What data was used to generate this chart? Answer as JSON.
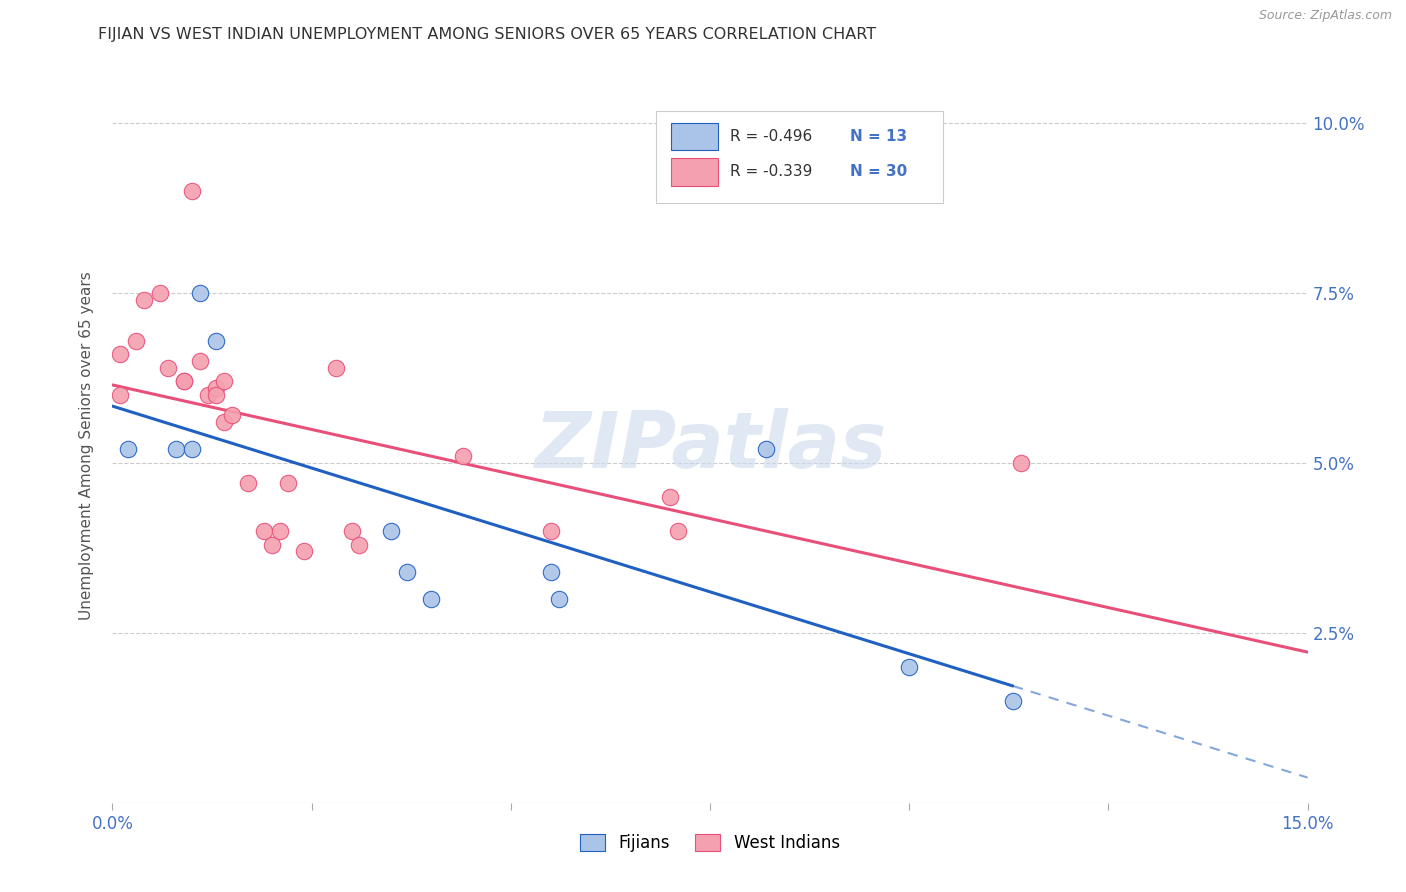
{
  "title": "FIJIAN VS WEST INDIAN UNEMPLOYMENT AMONG SENIORS OVER 65 YEARS CORRELATION CHART",
  "source": "Source: ZipAtlas.com",
  "xlabel": "",
  "ylabel": "Unemployment Among Seniors over 65 years",
  "watermark": "ZIPatlas",
  "xmin": 0.0,
  "xmax": 0.15,
  "ymin": 0.0,
  "ymax": 0.105,
  "ytick_positions": [
    0.025,
    0.05,
    0.075,
    0.1
  ],
  "ytick_labels": [
    "2.5%",
    "5.0%",
    "7.5%",
    "10.0%"
  ],
  "xtick_positions": [
    0.0,
    0.025,
    0.05,
    0.075,
    0.1,
    0.125,
    0.15
  ],
  "xtick_labels": [
    "0.0%",
    "",
    "",
    "",
    "",
    "",
    "15.0%"
  ],
  "fijian_R": "-0.496",
  "fijian_N": "13",
  "westindian_R": "-0.339",
  "westindian_N": "30",
  "fijian_color": "#aac4e8",
  "westindian_color": "#f4a0b0",
  "fijian_line_color": "#2060c0",
  "westindian_line_color": "#e8507a",
  "fijian_x": [
    0.002,
    0.008,
    0.01,
    0.011,
    0.013,
    0.035,
    0.037,
    0.04,
    0.055,
    0.056,
    0.082,
    0.1,
    0.113
  ],
  "fijian_y": [
    0.052,
    0.052,
    0.052,
    0.075,
    0.068,
    0.04,
    0.034,
    0.03,
    0.034,
    0.03,
    0.052,
    0.02,
    0.015
  ],
  "westindian_x": [
    0.001,
    0.001,
    0.003,
    0.004,
    0.006,
    0.007,
    0.009,
    0.009,
    0.01,
    0.011,
    0.012,
    0.013,
    0.013,
    0.014,
    0.014,
    0.015,
    0.017,
    0.019,
    0.02,
    0.021,
    0.022,
    0.024,
    0.028,
    0.03,
    0.031,
    0.044,
    0.055,
    0.07,
    0.071,
    0.114
  ],
  "westindian_y": [
    0.06,
    0.066,
    0.068,
    0.074,
    0.075,
    0.064,
    0.062,
    0.062,
    0.09,
    0.065,
    0.06,
    0.061,
    0.06,
    0.062,
    0.056,
    0.057,
    0.047,
    0.04,
    0.038,
    0.04,
    0.047,
    0.037,
    0.064,
    0.04,
    0.038,
    0.051,
    0.04,
    0.045,
    0.04,
    0.05
  ],
  "fijian_marker_size": 140,
  "westindian_marker_size": 140,
  "tick_color": "#4472c4",
  "legend_R_color": "#4472c4",
  "legend_N_color": "#4472c4"
}
